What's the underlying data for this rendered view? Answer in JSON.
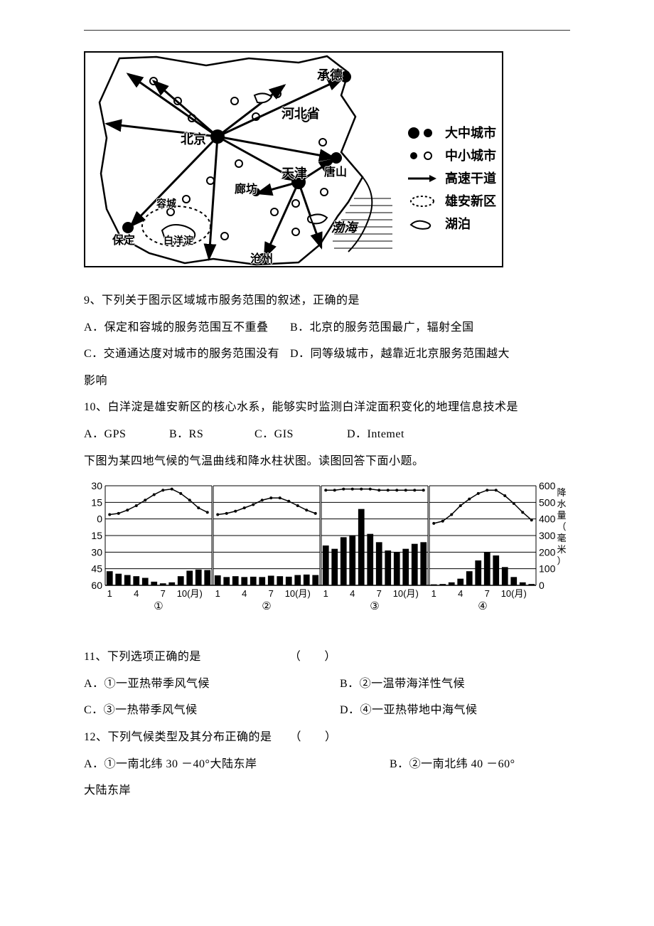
{
  "map": {
    "cities": {
      "chengde": "承德",
      "hebei_province": "河北省",
      "beijing": "北京",
      "tangshan": "唐山",
      "tianjin": "天津",
      "langfang": "廊坊",
      "rongcheng": "容城",
      "baoding": "保定",
      "baiyangdian": "白洋淀",
      "cangzhou": "沧州",
      "bohai": "渤海"
    },
    "legend": {
      "big_city": "大中城市",
      "small_city": "中小城市",
      "expressway": "高速干道",
      "xiongan": "雄安新区",
      "lake": "湖泊"
    }
  },
  "q9": {
    "stem": "9、下列关于图示区域城市服务范围的叙述，正确的是",
    "a": "A．保定和容城的服务范围互不重叠",
    "b": "B．北京的服务范围最广，辐射全国",
    "c": "C．交通通达度对城市的服务范围没有影响",
    "d": "D．同等级城市，越靠近北京服务范围越大"
  },
  "q10": {
    "stem": "10、白洋淀是雄安新区的核心水系，能够实时监测白洋淀面积变化的地理信息技术是",
    "a": "A．GPS",
    "b": "B．RS",
    "c": "C．GIS",
    "d": "D．Intemet"
  },
  "chart_intro": "下图为某四地气候的气温曲线和降水柱状图。读图回答下面小题。",
  "chart": {
    "type": "combined-line-bar",
    "temp_y_labels": [
      "30",
      "15",
      "0",
      "15",
      "30",
      "45",
      "60"
    ],
    "precip_y_labels": [
      "600",
      "500",
      "400",
      "300",
      "200",
      "100",
      "0"
    ],
    "precip_axis_title": "降水量（毫米）",
    "x_labels": [
      "1",
      "4",
      "7",
      "10(月)"
    ],
    "panel_labels": [
      "①",
      "②",
      "③",
      "④"
    ],
    "panels": {
      "1": {
        "temp": [
          4,
          5,
          8,
          12,
          17,
          22,
          26,
          27,
          23,
          17,
          10,
          6
        ],
        "precip": [
          85,
          70,
          62,
          55,
          45,
          22,
          12,
          18,
          55,
          88,
          95,
          92
        ],
        "line_color": "#000000",
        "bar_color": "#000000"
      },
      "2": {
        "temp": [
          4,
          5,
          7,
          10,
          13,
          17,
          19,
          19,
          16,
          12,
          8,
          5
        ],
        "precip": [
          60,
          50,
          55,
          50,
          52,
          50,
          58,
          55,
          52,
          62,
          65,
          62
        ],
        "line_color": "#000000",
        "bar_color": "#000000"
      },
      "3": {
        "temp": [
          26,
          26,
          27,
          27,
          27,
          27,
          26,
          26,
          26,
          26,
          26,
          26
        ],
        "precip": [
          240,
          220,
          290,
          300,
          460,
          310,
          260,
          210,
          200,
          220,
          250,
          260
        ],
        "line_color": "#000000",
        "bar_color": "#000000"
      },
      "4": {
        "temp": [
          -4,
          -2,
          4,
          12,
          18,
          23,
          26,
          26,
          21,
          14,
          6,
          -1
        ],
        "precip": [
          6,
          8,
          18,
          40,
          85,
          150,
          200,
          180,
          110,
          50,
          18,
          8
        ],
        "line_color": "#000000",
        "bar_color": "#000000"
      }
    },
    "grid_color": "#000000",
    "background": "#ffffff"
  },
  "q11": {
    "stem": "11、下列选项正确的是　　　　　　　　（　　）",
    "a": "A．①一亚热带季风气候",
    "b": "B．②一温带海洋性气候",
    "c": "C．③一热带季风气候",
    "d": "D．④一亚热带地中海气候"
  },
  "q12": {
    "stem": "12、下列气候类型及其分布正确的是　　（　　）",
    "a": "A．①一南北纬 30 －40°大陆东岸",
    "b": "B．②一南北纬 40 －60°",
    "b2": "大陆东岸"
  }
}
